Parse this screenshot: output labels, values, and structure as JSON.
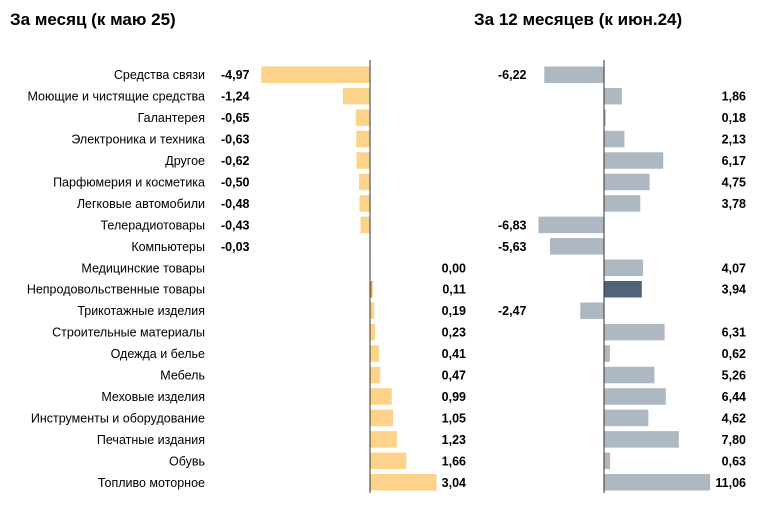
{
  "chart_data": [
    {
      "type": "bar",
      "orientation": "horizontal",
      "title": "За месяц (к маю 25)",
      "categories": [
        "Средства связи",
        "Моющие и чистящие средства",
        "Галантерея",
        "Электроника и техника",
        "Другое",
        "Парфюмерия и косметика",
        "Легковые автомобили",
        "Телерадиотовары",
        "Компьютеры",
        "Медицинские товары",
        "Непродовольственные товары",
        "Трикотажные изделия",
        "Строительные материалы",
        "Одежда и белье",
        "Мебель",
        "Меховые изделия",
        "Инструменты и оборудование",
        "Печатные издания",
        "Обувь",
        "Топливо моторное"
      ],
      "values": [
        -4.97,
        -1.24,
        -0.65,
        -0.63,
        -0.62,
        -0.5,
        -0.48,
        -0.43,
        -0.03,
        0.0,
        0.11,
        0.19,
        0.23,
        0.41,
        0.47,
        0.99,
        1.05,
        1.23,
        1.66,
        3.04
      ],
      "labels": [
        "-4,97",
        "-1,24",
        "-0,65",
        "-0,63",
        "-0,62",
        "-0,50",
        "-0,48",
        "-0,43",
        "-0,03",
        "0,00",
        "0,11",
        "0,19",
        "0,23",
        "0,41",
        "0,47",
        "0,99",
        "1,05",
        "1,23",
        "1,66",
        "3,04"
      ],
      "colors": {
        "bar": "#fdd28a",
        "highlight": "#e8a020",
        "axis": "#333333"
      },
      "highlight_index": 10
    },
    {
      "type": "bar",
      "orientation": "horizontal",
      "title": "За 12 месяцев (к июн.24)",
      "values": [
        -6.22,
        1.86,
        0.18,
        2.13,
        6.17,
        4.75,
        3.78,
        -6.83,
        -5.63,
        4.07,
        3.94,
        -2.47,
        6.31,
        0.62,
        5.26,
        6.44,
        4.62,
        7.8,
        0.63,
        11.06
      ],
      "labels": [
        "-6,22",
        "1,86",
        "0,18",
        "2,13",
        "6,17",
        "4,75",
        "3,78",
        "-6,83",
        "-5,63",
        "4,07",
        "3,94",
        "-2,47",
        "6,31",
        "0,62",
        "5,26",
        "6,44",
        "4,62",
        "7,80",
        "0,63",
        "11,06"
      ],
      "colors": {
        "bar": "#aeb8c2",
        "highlight": "#4f6479",
        "axis": "#333333"
      },
      "highlight_index": 10
    }
  ]
}
